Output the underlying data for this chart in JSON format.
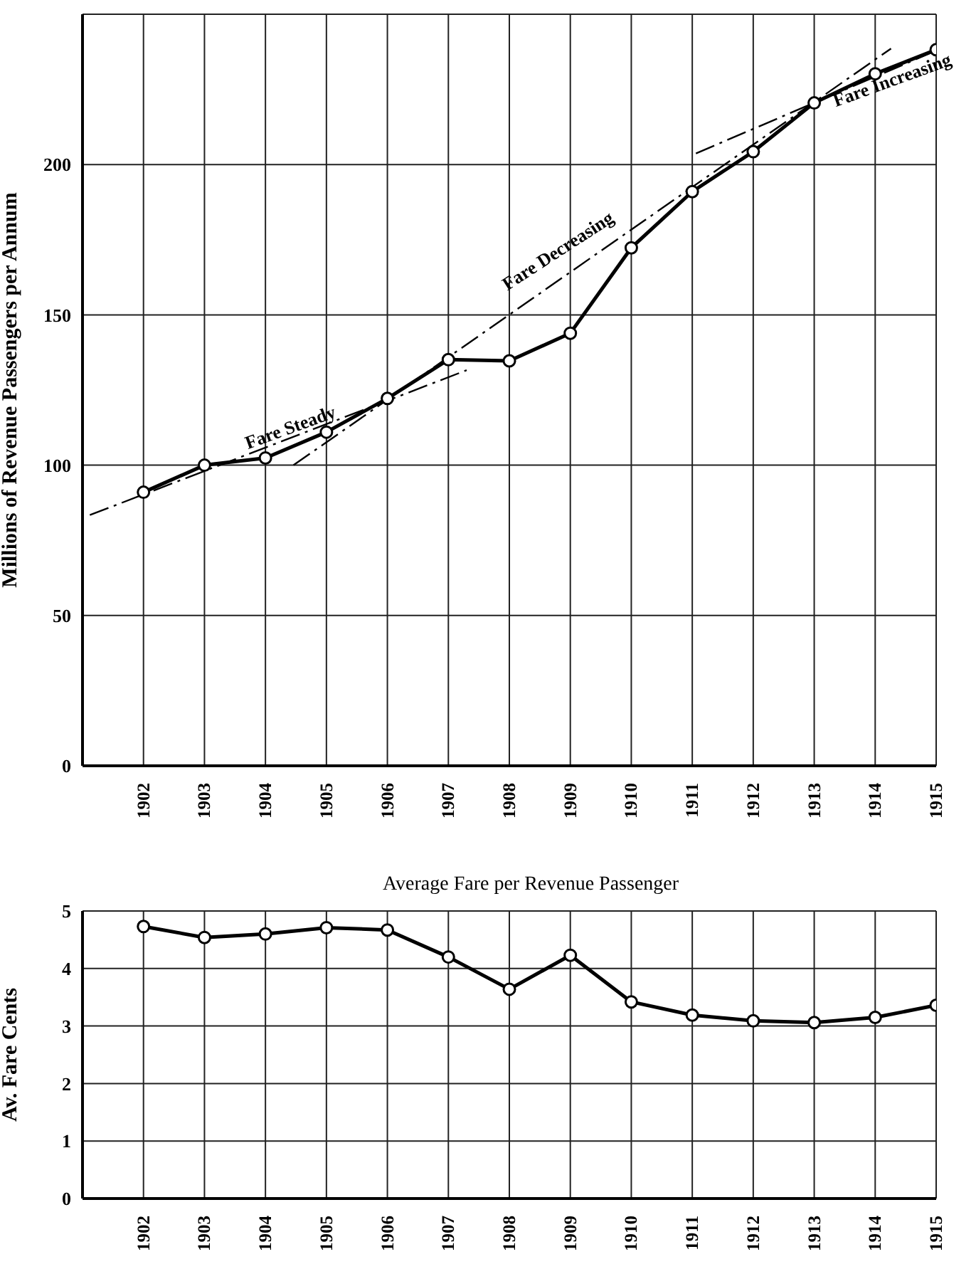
{
  "chart_data": [
    {
      "type": "line",
      "ylabel": "Millions of Revenue Passengers per Annum",
      "x": [
        1902,
        1903,
        1904,
        1905,
        1906,
        1907,
        1908,
        1909,
        1910,
        1911,
        1912,
        1913,
        1914,
        1915
      ],
      "series": [
        {
          "color": "#000000",
          "values": [
            91,
            100,
            102.4,
            111,
            122.2,
            135.1,
            134.7,
            143.9,
            172.3,
            191,
            204.3,
            220.5,
            230.2,
            238.2
          ]
        },
        {
          "type": "line",
          "color": "#000000",
          "marker": "none",
          "line_style": "dashed",
          "x": [
            1901.12,
            1907.3
          ],
          "values": [
            83.4,
            131.6
          ]
        },
        {
          "type": "line",
          "color": "#000000",
          "marker": "none",
          "line_style": "dashed",
          "x": [
            1904.46,
            1914.26
          ],
          "values": [
            100,
            238.6
          ]
        },
        {
          "type": "line",
          "color": "#000000",
          "marker": "none",
          "line_style": "dashed",
          "x": [
            1911.06,
            1915
          ],
          "values": [
            203.7,
            237.9
          ]
        }
      ],
      "annotations": [
        "Fare Steady",
        "Fare Decreasing",
        "Fare Increasing"
      ],
      "xlim": [
        1901,
        1915
      ],
      "xticks": [
        1902,
        1903,
        1904,
        1905,
        1906,
        1907,
        1908,
        1909,
        1910,
        1911,
        1912,
        1913,
        1914,
        1915
      ],
      "ylim": [
        0,
        250
      ],
      "yticks": [
        0,
        50,
        100,
        150,
        200
      ],
      "grid": true,
      "marker": "circle"
    },
    {
      "type": "line",
      "title": "Average Fare per Revenue Passenger",
      "ylabel": "Av. Fare  Cents",
      "x": [
        1902,
        1903,
        1904,
        1905,
        1906,
        1907,
        1908,
        1909,
        1910,
        1911,
        1912,
        1913,
        1914,
        1915
      ],
      "series": [
        {
          "color": "#000000",
          "values": [
            4.73,
            4.54,
            4.6,
            4.71,
            4.67,
            4.2,
            3.64,
            4.23,
            3.42,
            3.19,
            3.09,
            3.06,
            3.15,
            3.36
          ]
        }
      ],
      "xlim": [
        1901,
        1915
      ],
      "xticks": [
        1902,
        1903,
        1904,
        1905,
        1906,
        1907,
        1908,
        1909,
        1910,
        1911,
        1912,
        1913,
        1914,
        1915
      ],
      "ylim": [
        0,
        5
      ],
      "yticks": [
        0,
        1,
        2,
        3,
        4,
        5
      ],
      "grid": true,
      "marker": "circle"
    }
  ]
}
